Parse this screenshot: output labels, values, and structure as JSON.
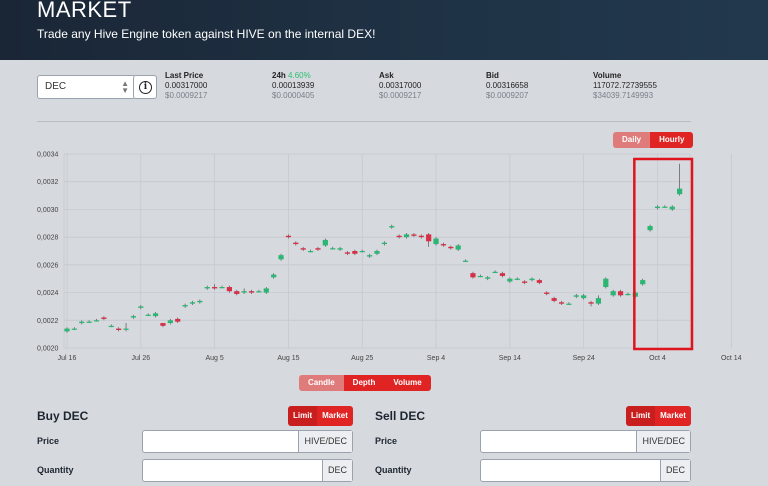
{
  "header": {
    "title": "MARKET",
    "subtitle": "Trade any Hive Engine token against HIVE on the internal DEX!"
  },
  "token_select": {
    "value": "DEC"
  },
  "stats": [
    {
      "label": "Last Price",
      "value": "0.00317000",
      "usd": "$0.0009217"
    },
    {
      "label": "24h",
      "change": "4.60%",
      "value": "0.00013939",
      "usd": "$0.0000405"
    },
    {
      "label": "Ask",
      "value": "0.00317000",
      "usd": "$0.0009217"
    },
    {
      "label": "Bid",
      "value": "0.00316658",
      "usd": "$0.0009207"
    },
    {
      "label": "Volume",
      "value": "117072.72739555",
      "usd": "$34039.7149993"
    }
  ],
  "period_toggle": {
    "daily": "Daily",
    "hourly": "Hourly"
  },
  "chart_toggle": {
    "candle": "Candle",
    "depth": "Depth",
    "volume": "Volume"
  },
  "chart_data": {
    "type": "candlestick",
    "ylim": [
      0.002,
      0.0034
    ],
    "y_ticks": [
      "0,0020",
      "0,0022",
      "0,0024",
      "0,0026",
      "0,0028",
      "0,0030",
      "0,0032",
      "0,0034"
    ],
    "x_ticks": [
      "Jul 16",
      "Jul 26",
      "Aug 5",
      "Aug 15",
      "Aug 25",
      "Sep 4",
      "Sep 14",
      "Sep 24",
      "Oct 4",
      "Oct 14"
    ],
    "x_start_day": 0,
    "candles": [
      [
        0,
        0.00212,
        0.00214,
        0.00215,
        0.00211
      ],
      [
        1,
        0.00214,
        0.00214,
        0.00215,
        0.00213
      ],
      [
        2,
        0.00218,
        0.00219,
        0.0022,
        0.00217
      ],
      [
        3,
        0.00219,
        0.00219,
        0.0022,
        0.00218
      ],
      [
        4,
        0.0022,
        0.0022,
        0.00221,
        0.00219
      ],
      [
        5,
        0.00222,
        0.00221,
        0.00223,
        0.0022
      ],
      [
        6,
        0.00216,
        0.00216,
        0.00217,
        0.00215
      ],
      [
        7,
        0.00214,
        0.00213,
        0.00215,
        0.00212
      ],
      [
        8,
        0.00214,
        0.00214,
        0.00218,
        0.00212
      ],
      [
        9,
        0.00222,
        0.00223,
        0.00224,
        0.00221
      ],
      [
        10,
        0.00229,
        0.0023,
        0.00231,
        0.00228
      ],
      [
        11,
        0.00224,
        0.00224,
        0.00225,
        0.00223
      ],
      [
        12,
        0.00223,
        0.00225,
        0.00226,
        0.00222
      ],
      [
        13,
        0.00218,
        0.00216,
        0.00218,
        0.00215
      ],
      [
        14,
        0.00218,
        0.0022,
        0.00221,
        0.00217
      ],
      [
        15,
        0.00221,
        0.00219,
        0.00222,
        0.00218
      ],
      [
        16,
        0.0023,
        0.00231,
        0.00232,
        0.00229
      ],
      [
        17,
        0.00232,
        0.00233,
        0.00234,
        0.00231
      ],
      [
        18,
        0.00233,
        0.00234,
        0.00235,
        0.00232
      ],
      [
        19,
        0.00243,
        0.00244,
        0.00245,
        0.00242
      ],
      [
        20,
        0.00244,
        0.00243,
        0.00246,
        0.00242
      ],
      [
        21,
        0.00244,
        0.00244,
        0.00245,
        0.00243
      ],
      [
        22,
        0.00244,
        0.00241,
        0.00245,
        0.0024
      ],
      [
        23,
        0.00241,
        0.00239,
        0.00242,
        0.00238
      ],
      [
        24,
        0.0024,
        0.00241,
        0.00243,
        0.00239
      ],
      [
        25,
        0.00241,
        0.0024,
        0.00242,
        0.00239
      ],
      [
        26,
        0.00241,
        0.00241,
        0.00242,
        0.0024
      ],
      [
        27,
        0.0024,
        0.00243,
        0.00244,
        0.00239
      ],
      [
        28,
        0.00251,
        0.00253,
        0.00254,
        0.0025
      ],
      [
        29,
        0.00264,
        0.00267,
        0.00268,
        0.00263
      ],
      [
        30,
        0.00281,
        0.0028,
        0.00282,
        0.00279
      ],
      [
        31,
        0.00276,
        0.00275,
        0.00277,
        0.00274
      ],
      [
        32,
        0.00272,
        0.00271,
        0.00273,
        0.0027
      ],
      [
        33,
        0.0027,
        0.0027,
        0.00271,
        0.00269
      ],
      [
        34,
        0.00272,
        0.00271,
        0.00273,
        0.0027
      ],
      [
        35,
        0.00274,
        0.00278,
        0.00279,
        0.00273
      ],
      [
        36,
        0.00272,
        0.00272,
        0.00273,
        0.00271
      ],
      [
        37,
        0.00271,
        0.00272,
        0.00273,
        0.0027
      ],
      [
        38,
        0.00269,
        0.00268,
        0.0027,
        0.00267
      ],
      [
        39,
        0.0027,
        0.00268,
        0.00271,
        0.00267
      ],
      [
        40,
        0.0027,
        0.0027,
        0.00271,
        0.00269
      ],
      [
        41,
        0.00266,
        0.00267,
        0.00268,
        0.00265
      ],
      [
        42,
        0.00268,
        0.0027,
        0.00271,
        0.00267
      ],
      [
        43,
        0.00275,
        0.00276,
        0.00277,
        0.00274
      ],
      [
        44,
        0.00287,
        0.00288,
        0.00289,
        0.00286
      ],
      [
        45,
        0.00281,
        0.0028,
        0.00282,
        0.00279
      ],
      [
        46,
        0.0028,
        0.00282,
        0.00283,
        0.00279
      ],
      [
        47,
        0.00282,
        0.00281,
        0.00283,
        0.0028
      ],
      [
        48,
        0.00281,
        0.0028,
        0.00282,
        0.00279
      ],
      [
        49,
        0.00282,
        0.00277,
        0.00283,
        0.00273
      ],
      [
        50,
        0.00275,
        0.00279,
        0.0028,
        0.00274
      ],
      [
        51,
        0.00275,
        0.00274,
        0.00276,
        0.00273
      ],
      [
        52,
        0.00273,
        0.00272,
        0.00274,
        0.00271
      ],
      [
        53,
        0.00271,
        0.00274,
        0.00275,
        0.0027
      ],
      [
        54,
        0.00263,
        0.00263,
        0.00264,
        0.00262
      ],
      [
        55,
        0.00254,
        0.00251,
        0.00255,
        0.0025
      ],
      [
        56,
        0.00252,
        0.00252,
        0.00253,
        0.00251
      ],
      [
        57,
        0.0025,
        0.00251,
        0.00252,
        0.00249
      ],
      [
        58,
        0.00255,
        0.00255,
        0.00256,
        0.00254
      ],
      [
        59,
        0.00254,
        0.00252,
        0.00255,
        0.00251
      ],
      [
        60,
        0.00248,
        0.0025,
        0.00251,
        0.00247
      ],
      [
        61,
        0.0025,
        0.0025,
        0.00251,
        0.00249
      ],
      [
        62,
        0.00248,
        0.00247,
        0.00249,
        0.00246
      ],
      [
        63,
        0.00249,
        0.0025,
        0.00251,
        0.00248
      ],
      [
        64,
        0.00249,
        0.00247,
        0.0025,
        0.00246
      ],
      [
        65,
        0.0024,
        0.00239,
        0.00241,
        0.00238
      ],
      [
        66,
        0.00236,
        0.00234,
        0.00237,
        0.00233
      ],
      [
        67,
        0.00233,
        0.00232,
        0.00234,
        0.00231
      ],
      [
        68,
        0.00232,
        0.00232,
        0.00233,
        0.00231
      ],
      [
        69,
        0.00237,
        0.00238,
        0.00239,
        0.00236
      ],
      [
        70,
        0.00236,
        0.00238,
        0.00239,
        0.00235
      ],
      [
        71,
        0.00233,
        0.00232,
        0.00234,
        0.0023
      ],
      [
        72,
        0.00232,
        0.00236,
        0.00238,
        0.00231
      ],
      [
        73,
        0.00244,
        0.0025,
        0.00251,
        0.00243
      ],
      [
        74,
        0.00238,
        0.00241,
        0.00242,
        0.00237
      ],
      [
        75,
        0.00241,
        0.00238,
        0.00242,
        0.00237
      ],
      [
        76,
        0.00239,
        0.00239,
        0.0024,
        0.00238
      ],
      [
        77,
        0.00237,
        0.0024,
        0.00241,
        0.00236
      ],
      [
        78,
        0.00246,
        0.00249,
        0.0025,
        0.00245
      ],
      [
        79,
        0.00285,
        0.00288,
        0.00289,
        0.00284
      ],
      [
        80,
        0.00301,
        0.00302,
        0.00303,
        0.003
      ],
      [
        81,
        0.00302,
        0.00302,
        0.00303,
        0.00301
      ],
      [
        82,
        0.003,
        0.00302,
        0.00303,
        0.00299
      ],
      [
        83,
        0.00311,
        0.00315,
        0.00333,
        0.0031
      ]
    ],
    "colors": {
      "up": "#2bb673",
      "down": "#d62f46",
      "highlight": "#e0141d"
    },
    "highlight_days": [
      77,
      84
    ]
  },
  "buy": {
    "title": "Buy DEC",
    "limit": "Limit",
    "market": "Market",
    "price_label": "Price",
    "price_unit": "HIVE/DEC",
    "qty_label": "Quantity",
    "qty_unit": "DEC"
  },
  "sell": {
    "title": "Sell DEC",
    "limit": "Limit",
    "market": "Market",
    "price_label": "Price",
    "price_unit": "HIVE/DEC",
    "qty_label": "Quantity",
    "qty_unit": "DEC"
  }
}
